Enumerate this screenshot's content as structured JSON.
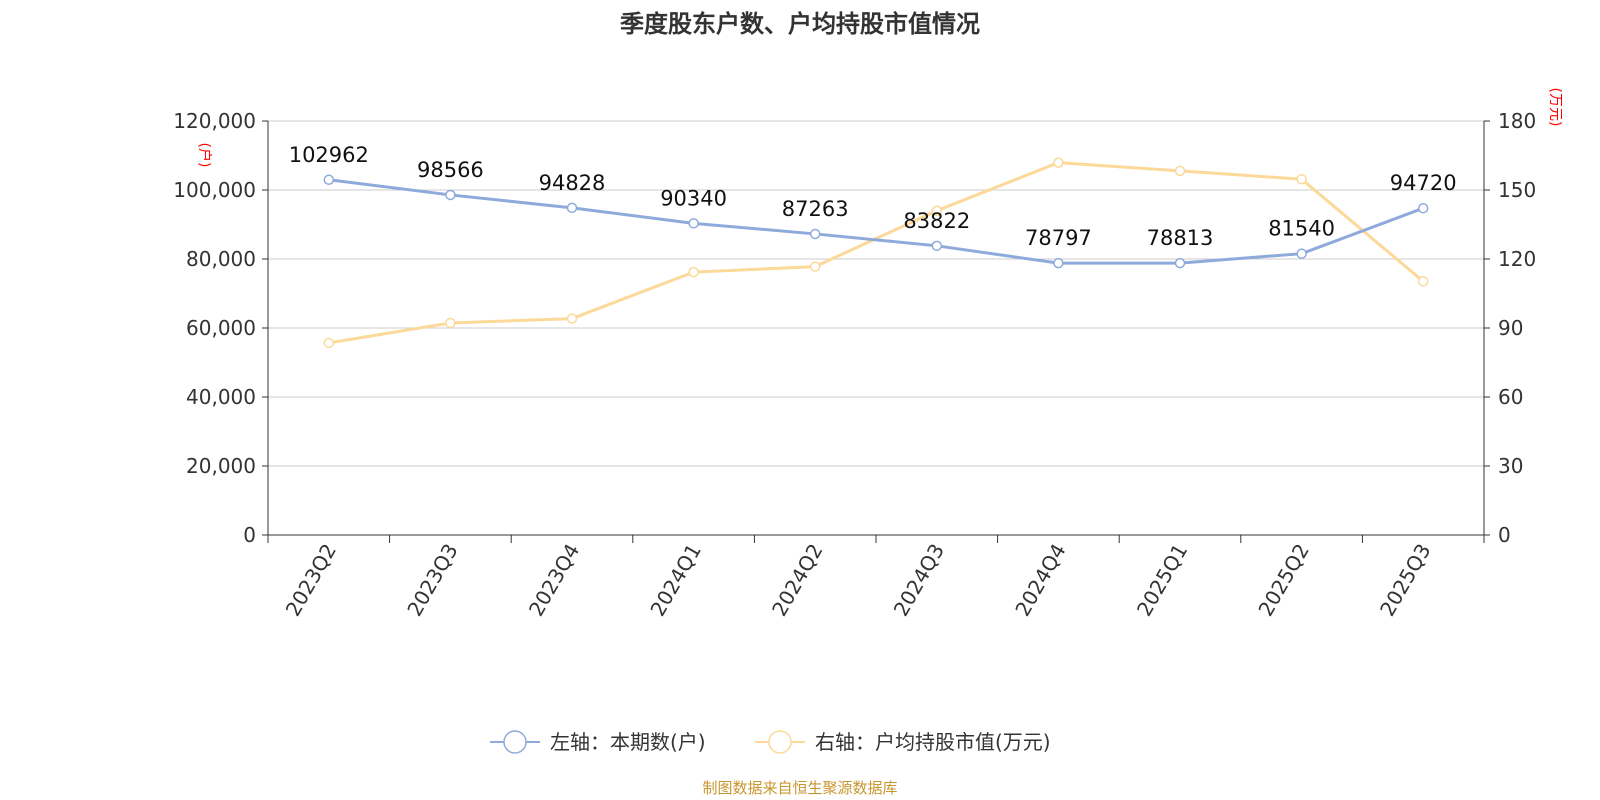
{
  "colors": {
    "left_series": "#8eaadb",
    "right_series": "#fcd999",
    "grid": "#cccccc",
    "axis": "#333333",
    "unit_label": "#ff0000",
    "source": "#c8962e"
  },
  "source_text": "制图数据来自恒生聚源数据库",
  "chart_data": {
    "type": "line",
    "title": "季度股东户数、户均持股市值情况",
    "categories": [
      "2023Q2",
      "2023Q3",
      "2023Q4",
      "2024Q1",
      "2024Q2",
      "2024Q3",
      "2024Q4",
      "2025Q1",
      "2025Q2",
      "2025Q3"
    ],
    "y_left": {
      "unit": "(户)",
      "range": [
        0,
        120000
      ],
      "ticks": [
        0,
        20000,
        40000,
        60000,
        80000,
        100000,
        120000
      ],
      "tick_labels": [
        "0",
        "20,000",
        "40,000",
        "60,000",
        "80,000",
        "100,000",
        "120,000"
      ]
    },
    "y_right": {
      "unit": "(万元)",
      "range": [
        0,
        180
      ],
      "ticks": [
        0,
        30,
        60,
        90,
        120,
        150,
        180
      ],
      "tick_labels": [
        "0",
        "30",
        "60",
        "90",
        "120",
        "150",
        "180"
      ]
    },
    "grid": true,
    "legend_position": "bottom-center",
    "series": [
      {
        "name": "左轴：本期数(户)",
        "axis": "left",
        "values": [
          102962,
          98566,
          94828,
          90340,
          87263,
          83822,
          78797,
          78813,
          81540,
          94720
        ],
        "data_labels": [
          "102962",
          "98566",
          "94828",
          "90340",
          "87263",
          "83822",
          "78797",
          "78813",
          "81540",
          "94720"
        ]
      },
      {
        "name": "右轴：户均持股市值(万元)",
        "axis": "right",
        "values": [
          83.5,
          92.2,
          94.1,
          114.3,
          116.7,
          141.0,
          161.9,
          158.3,
          154.7,
          110.3
        ]
      }
    ]
  }
}
